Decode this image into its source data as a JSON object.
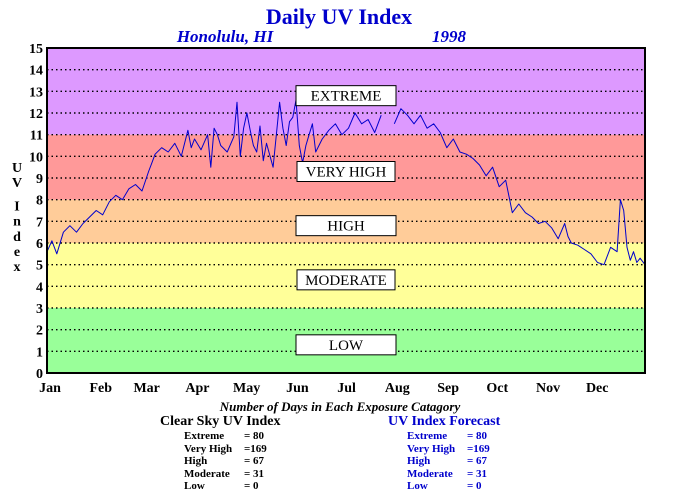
{
  "chart_data": {
    "type": "line",
    "title": "Daily UV Index",
    "subtitle_location": "Honolulu, HI",
    "subtitle_year": "1998",
    "ylabel": "UV Index",
    "xlabel": "",
    "ylim": [
      0,
      15
    ],
    "xlim": [
      0,
      365
    ],
    "yticks": [
      0,
      1,
      2,
      3,
      4,
      5,
      6,
      7,
      8,
      9,
      10,
      11,
      12,
      13,
      14,
      15
    ],
    "xticks": [
      {
        "label": "Jan",
        "day": 0
      },
      {
        "label": "Feb",
        "day": 31
      },
      {
        "label": "Mar",
        "day": 59
      },
      {
        "label": "Apr",
        "day": 90
      },
      {
        "label": "May",
        "day": 120
      },
      {
        "label": "Jun",
        "day": 151
      },
      {
        "label": "Jul",
        "day": 181
      },
      {
        "label": "Aug",
        "day": 212
      },
      {
        "label": "Sep",
        "day": 243
      },
      {
        "label": "Oct",
        "day": 273
      },
      {
        "label": "Nov",
        "day": 304
      },
      {
        "label": "Dec",
        "day": 334
      }
    ],
    "grid": "dotted horizontal",
    "bands": [
      {
        "name": "LOW",
        "from": 0,
        "to": 3,
        "color": "#99ff99"
      },
      {
        "name": "MODERATE",
        "from": 3,
        "to": 6,
        "color": "#ffff99"
      },
      {
        "name": "HIGH",
        "from": 6,
        "to": 8,
        "color": "#ffcc99"
      },
      {
        "name": "VERY HIGH",
        "from": 8,
        "to": 11,
        "color": "#ff9999"
      },
      {
        "name": "EXTREME",
        "from": 11,
        "to": 15,
        "color": "#dd99ff"
      }
    ],
    "band_labels": [
      {
        "text": "EXTREME",
        "y": 12.8
      },
      {
        "text": "VERY HIGH",
        "y": 9.3
      },
      {
        "text": "HIGH",
        "y": 6.8
      },
      {
        "text": "MODERATE",
        "y": 4.3
      },
      {
        "text": "LOW",
        "y": 1.3
      }
    ],
    "series": [
      {
        "line_color": "#0000cc",
        "x": [
          0,
          3,
          6,
          10,
          14,
          18,
          22,
          26,
          30,
          34,
          38,
          42,
          46,
          50,
          54,
          58,
          62,
          64,
          66,
          70,
          74,
          78,
          82,
          86,
          88,
          90,
          94,
          98,
          100,
          102,
          104,
          106,
          110,
          114,
          116,
          118,
          120,
          122,
          124,
          126,
          128,
          130,
          132,
          134,
          138,
          142,
          144,
          146,
          148,
          150,
          152,
          154,
          156,
          158,
          160,
          162,
          164,
          168,
          172,
          176,
          180,
          184,
          188,
          192,
          196,
          200,
          204,
          210,
          212,
          216,
          220,
          224,
          228,
          232,
          236,
          240,
          244,
          248,
          252,
          256,
          260,
          264,
          268,
          272,
          276,
          280,
          284,
          288,
          292,
          296,
          300,
          304,
          308,
          312,
          316,
          318,
          320,
          324,
          328,
          332,
          336,
          340,
          344,
          348,
          350,
          352,
          354,
          356,
          358,
          360,
          362,
          365
        ],
        "y": [
          5.6,
          6.1,
          5.5,
          6.5,
          6.8,
          6.5,
          6.9,
          7.2,
          7.5,
          7.3,
          7.9,
          8.2,
          8.0,
          8.5,
          8.7,
          8.4,
          9.3,
          9.7,
          10.1,
          10.4,
          10.2,
          10.6,
          10.0,
          11.2,
          10.4,
          10.8,
          10.3,
          11.0,
          9.5,
          11.3,
          11.0,
          10.5,
          10.2,
          10.9,
          12.5,
          10.0,
          11.3,
          12.0,
          11.2,
          10.5,
          10.2,
          11.4,
          9.8,
          10.6,
          9.5,
          12.5,
          11.3,
          10.5,
          11.6,
          11.8,
          12.6,
          10.5,
          9.7,
          10.5,
          11.0,
          11.5,
          10.2,
          10.8,
          11.2,
          11.5,
          11.0,
          11.3,
          12.0,
          11.5,
          11.7,
          11.1,
          11.9,
          null,
          11.5,
          12.2,
          11.9,
          11.5,
          11.9,
          11.3,
          11.5,
          11.1,
          10.4,
          10.8,
          10.2,
          10.1,
          9.9,
          9.6,
          9.1,
          9.5,
          8.6,
          8.9,
          7.4,
          7.8,
          7.4,
          7.2,
          6.9,
          7.0,
          6.7,
          6.2,
          6.9,
          6.3,
          6.0,
          5.9,
          5.7,
          5.5,
          5.1,
          5.0,
          5.8,
          5.6,
          8.0,
          7.5,
          5.8,
          5.2,
          5.6,
          5.1,
          5.3,
          5.0
        ]
      }
    ]
  },
  "exposure": {
    "title": "Number of Days in Each Exposure Catagory",
    "clear_sky": {
      "heading": "Clear Sky UV Index",
      "rows": [
        {
          "label": "Extreme",
          "value": "= 80"
        },
        {
          "label": "Very High",
          "value": "=169"
        },
        {
          "label": "High",
          "value": "= 67"
        },
        {
          "label": "Moderate",
          "value": "= 31"
        },
        {
          "label": "Low",
          "value": "=   0"
        }
      ]
    },
    "forecast": {
      "heading": "UV Index Forecast",
      "rows": [
        {
          "label": "Extreme",
          "value": "= 80"
        },
        {
          "label": "Very High",
          "value": "=169"
        },
        {
          "label": "High",
          "value": "= 67"
        },
        {
          "label": "Moderate",
          "value": "= 31"
        },
        {
          "label": "Low",
          "value": "=   0"
        }
      ]
    }
  }
}
